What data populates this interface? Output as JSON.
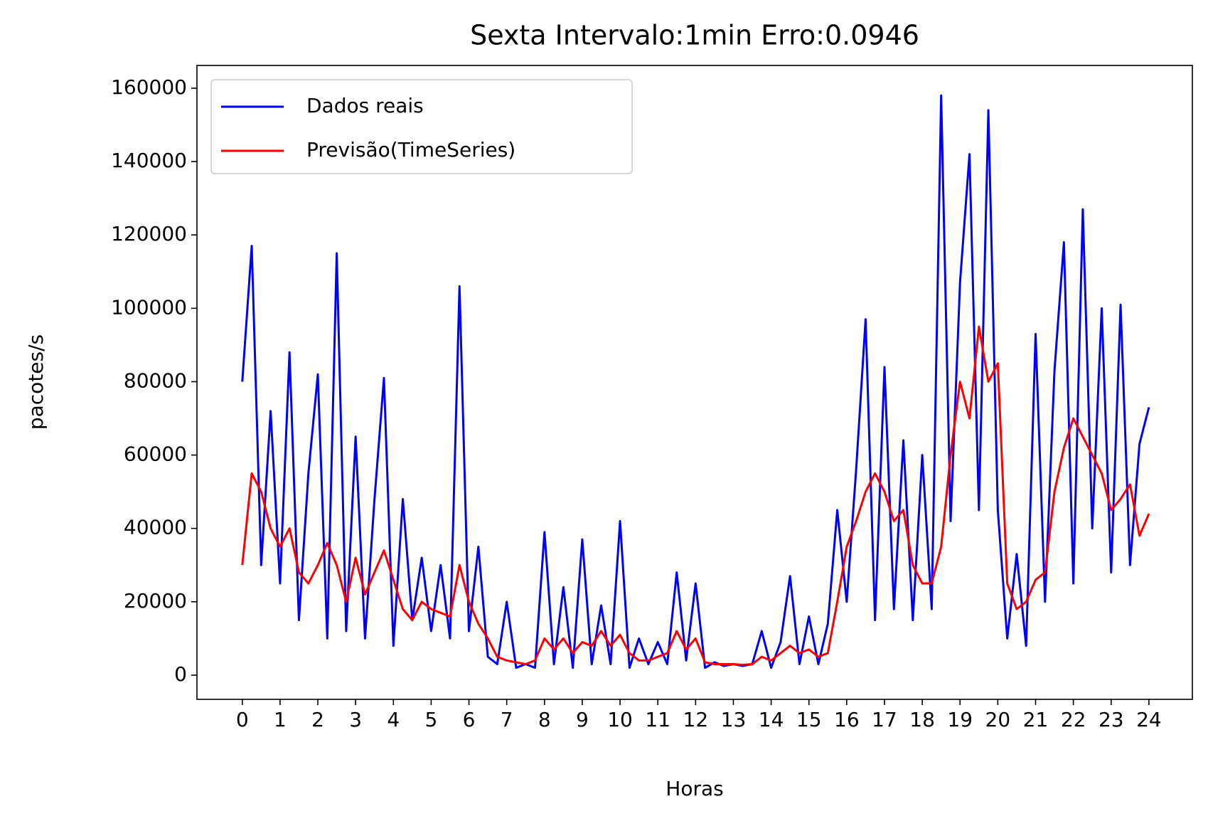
{
  "chart_data": {
    "type": "line",
    "title": "Sexta Intervalo:1min Erro:0.0946",
    "x_label": "Horas",
    "y_label": "pacotes/s",
    "x": [
      0,
      0.25,
      0.5,
      0.75,
      1,
      1.25,
      1.5,
      1.75,
      2,
      2.25,
      2.5,
      2.75,
      3,
      3.25,
      3.5,
      3.75,
      4,
      4.25,
      4.5,
      4.75,
      5,
      5.25,
      5.5,
      5.75,
      6,
      6.25,
      6.5,
      6.75,
      7,
      7.25,
      7.5,
      7.75,
      8,
      8.25,
      8.5,
      8.75,
      9,
      9.25,
      9.5,
      9.75,
      10,
      10.25,
      10.5,
      10.75,
      11,
      11.25,
      11.5,
      11.75,
      12,
      12.25,
      12.5,
      12.75,
      13,
      13.25,
      13.5,
      13.75,
      14,
      14.25,
      14.5,
      14.75,
      15,
      15.25,
      15.5,
      15.75,
      16,
      16.25,
      16.5,
      16.75,
      17,
      17.25,
      17.5,
      17.75,
      18,
      18.25,
      18.5,
      18.75,
      19,
      19.25,
      19.5,
      19.75,
      20,
      20.25,
      20.5,
      20.75,
      21,
      21.25,
      21.5,
      21.75,
      22,
      22.25,
      22.5,
      22.75,
      23,
      23.25,
      23.5,
      23.75,
      24
    ],
    "series": [
      {
        "name": "Dados reais",
        "color": "#0000ff",
        "values": [
          80000,
          117000,
          30000,
          72000,
          25000,
          88000,
          15000,
          55000,
          82000,
          10000,
          115000,
          12000,
          65000,
          10000,
          48000,
          81000,
          8000,
          48000,
          15000,
          32000,
          12000,
          30000,
          10000,
          106000,
          12000,
          35000,
          5000,
          3000,
          20000,
          2000,
          3000,
          2000,
          39000,
          3000,
          24000,
          2000,
          37000,
          3000,
          19000,
          3000,
          42000,
          2000,
          10000,
          3000,
          9000,
          3000,
          28000,
          4000,
          25000,
          2000,
          3500,
          2500,
          3000,
          2500,
          3000,
          12000,
          2000,
          9000,
          27000,
          3000,
          16000,
          3000,
          14000,
          45000,
          20000,
          56000,
          97000,
          15000,
          84000,
          18000,
          64000,
          15000,
          60000,
          18000,
          158000,
          42000,
          107000,
          142000,
          45000,
          154000,
          45000,
          10000,
          33000,
          8000,
          93000,
          20000,
          83000,
          118000,
          25000,
          127000,
          40000,
          100000,
          28000,
          101000,
          30000,
          63000,
          73000
        ]
      },
      {
        "name": "Previsão(TimeSeries)",
        "color": "#ff0000",
        "values": [
          30000,
          55000,
          50000,
          40000,
          35000,
          40000,
          28000,
          25000,
          30000,
          36000,
          30000,
          20000,
          32000,
          22000,
          28000,
          34000,
          26000,
          18000,
          15000,
          20000,
          18000,
          17000,
          16000,
          30000,
          20000,
          14000,
          10000,
          5000,
          4000,
          3500,
          3000,
          4000,
          10000,
          7000,
          10000,
          6000,
          9000,
          8000,
          12000,
          8000,
          11000,
          6000,
          4000,
          4000,
          5000,
          6000,
          12000,
          7000,
          10000,
          3500,
          3000,
          3000,
          3000,
          2800,
          3000,
          5000,
          4000,
          6000,
          8000,
          6000,
          7000,
          5000,
          6000,
          20000,
          35000,
          42000,
          50000,
          55000,
          50000,
          42000,
          45000,
          30000,
          25000,
          25000,
          35000,
          60000,
          80000,
          70000,
          95000,
          80000,
          85000,
          25000,
          18000,
          20000,
          26000,
          28000,
          50000,
          62000,
          70000,
          65000,
          60000,
          55000,
          45000,
          48000,
          52000,
          38000,
          44000
        ]
      }
    ],
    "xlim": [
      -1.2,
      25.15
    ],
    "ylim": [
      -6600,
      166200
    ],
    "xticks": [
      0,
      1,
      2,
      3,
      4,
      5,
      6,
      7,
      8,
      9,
      10,
      11,
      12,
      13,
      14,
      15,
      16,
      17,
      18,
      19,
      20,
      21,
      22,
      23,
      24
    ],
    "yticks": [
      0,
      20000,
      40000,
      60000,
      80000,
      100000,
      120000,
      140000,
      160000
    ],
    "legend": "upper left",
    "grid": false
  }
}
